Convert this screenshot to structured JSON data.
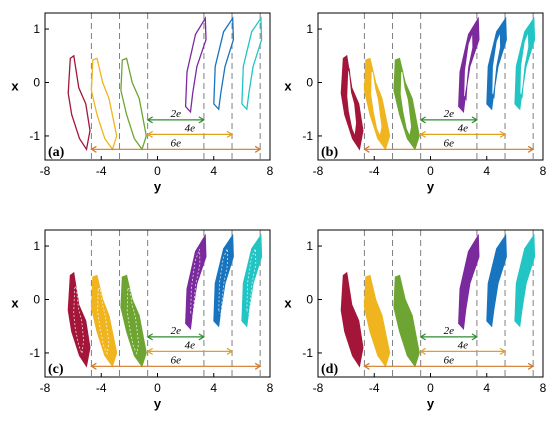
{
  "colors": {
    "series": [
      "#a3163a",
      "#f0b41e",
      "#6ea532",
      "#7b2a9e",
      "#1874be",
      "#22c4c4"
    ],
    "annotation_2e": "#2e8b2e",
    "annotation_4e": "#e0a020",
    "annotation_6e": "#d07a2a",
    "guide": "#808080",
    "frame": "#000000"
  },
  "chart_data": [
    {
      "type": "line",
      "panel_label": "(a)",
      "style": "outline",
      "xlabel": "y",
      "ylabel": "x",
      "xlim": [
        -8,
        8
      ],
      "ylim": [
        -1.45,
        1.3
      ],
      "xticks": [
        "-8",
        "-4",
        "0",
        "4",
        "8"
      ],
      "yticks": [
        "-1",
        "0",
        "1"
      ],
      "guide_lines_x": [
        -4.7,
        -2.7,
        -0.7,
        3.3,
        5.3,
        7.3
      ],
      "annotations": [
        {
          "label": "2e",
          "from": -0.7,
          "to": 3.3,
          "y": -0.7
        },
        {
          "label": "4e",
          "from": -0.7,
          "to": 5.3,
          "y": -0.97
        },
        {
          "label": "6e",
          "from": -4.7,
          "to": 7.3,
          "y": -1.25
        }
      ]
    },
    {
      "type": "area",
      "panel_label": "(b)",
      "style": "band",
      "xlabel": "y",
      "ylabel": "x",
      "xlim": [
        -8,
        8
      ],
      "ylim": [
        -1.45,
        1.3
      ],
      "xticks": [
        "-8",
        "-4",
        "0",
        "4",
        "8"
      ],
      "yticks": [
        "-1",
        "0",
        "1"
      ],
      "guide_lines_x": [
        -4.7,
        -2.7,
        -0.7,
        3.3,
        5.3,
        7.3
      ],
      "annotations": [
        {
          "label": "2e",
          "from": -0.7,
          "to": 3.3,
          "y": -0.7
        },
        {
          "label": "4e",
          "from": -0.7,
          "to": 5.3,
          "y": -0.97
        },
        {
          "label": "6e",
          "from": -4.7,
          "to": 7.3,
          "y": -1.25
        }
      ]
    },
    {
      "type": "area",
      "panel_label": "(c)",
      "style": "hatched",
      "xlabel": "y",
      "ylabel": "x",
      "xlim": [
        -8,
        8
      ],
      "ylim": [
        -1.45,
        1.3
      ],
      "xticks": [
        "-8",
        "-4",
        "0",
        "4",
        "8"
      ],
      "yticks": [
        "-1",
        "0",
        "1"
      ],
      "guide_lines_x": [
        -4.7,
        -2.7,
        -0.7,
        3.3,
        5.3,
        7.3
      ],
      "annotations": [
        {
          "label": "2e",
          "from": -0.7,
          "to": 3.3,
          "y": -0.7
        },
        {
          "label": "4e",
          "from": -0.7,
          "to": 5.3,
          "y": -0.97
        },
        {
          "label": "6e",
          "from": -4.7,
          "to": 7.3,
          "y": -1.25
        }
      ]
    },
    {
      "type": "area",
      "panel_label": "(d)",
      "style": "solid",
      "xlabel": "y",
      "ylabel": "x",
      "xlim": [
        -8,
        8
      ],
      "ylim": [
        -1.45,
        1.3
      ],
      "xticks": [
        "-8",
        "-4",
        "0",
        "4",
        "8"
      ],
      "yticks": [
        "-1",
        "0",
        "1"
      ],
      "guide_lines_x": [
        -4.7,
        -2.7,
        -0.7,
        3.3,
        5.3,
        7.3
      ],
      "annotations": [
        {
          "label": "2e",
          "from": -0.7,
          "to": 3.3,
          "y": -0.7
        },
        {
          "label": "4e",
          "from": -0.7,
          "to": 5.3,
          "y": -0.97
        },
        {
          "label": "6e",
          "from": -4.7,
          "to": 7.3,
          "y": -1.25
        }
      ]
    }
  ],
  "attractors": [
    {
      "name": "",
      "points": [
        [
          -6.2,
          0.45
        ],
        [
          -5.95,
          0.5
        ],
        [
          -5.6,
          -0.1
        ],
        [
          -5.1,
          -0.4
        ],
        [
          -4.8,
          -0.9
        ],
        [
          -5.05,
          -1.25
        ],
        [
          -5.55,
          -1.05
        ],
        [
          -6.1,
          -0.6
        ],
        [
          -6.35,
          -0.2
        ]
      ]
    },
    {
      "name": "",
      "points": [
        [
          -4.6,
          0.42
        ],
        [
          -4.3,
          0.45
        ],
        [
          -3.9,
          0.0
        ],
        [
          -3.45,
          -0.3
        ],
        [
          -2.9,
          -1.0
        ],
        [
          -3.2,
          -1.25
        ],
        [
          -3.75,
          -1.05
        ],
        [
          -4.3,
          -0.6
        ],
        [
          -4.7,
          -0.15
        ]
      ]
    },
    {
      "name": "",
      "points": [
        [
          -2.5,
          0.42
        ],
        [
          -2.2,
          0.45
        ],
        [
          -1.8,
          0.0
        ],
        [
          -1.3,
          -0.3
        ],
        [
          -0.8,
          -1.0
        ],
        [
          -1.1,
          -1.25
        ],
        [
          -1.65,
          -1.05
        ],
        [
          -2.2,
          -0.6
        ],
        [
          -2.6,
          -0.15
        ]
      ]
    },
    {
      "name": "",
      "points": [
        [
          2.0,
          -0.45
        ],
        [
          2.1,
          0.2
        ],
        [
          2.7,
          0.9
        ],
        [
          3.4,
          1.2
        ],
        [
          3.45,
          0.8
        ],
        [
          2.8,
          0.3
        ],
        [
          2.5,
          -0.2
        ],
        [
          2.35,
          -0.55
        ]
      ]
    },
    {
      "name": "",
      "points": [
        [
          4.0,
          -0.4
        ],
        [
          4.1,
          0.3
        ],
        [
          4.7,
          0.95
        ],
        [
          5.35,
          1.2
        ],
        [
          5.4,
          0.8
        ],
        [
          4.8,
          0.3
        ],
        [
          4.5,
          -0.2
        ],
        [
          4.35,
          -0.5
        ]
      ]
    },
    {
      "name": "",
      "points": [
        [
          6.0,
          -0.4
        ],
        [
          6.1,
          0.3
        ],
        [
          6.7,
          0.95
        ],
        [
          7.35,
          1.2
        ],
        [
          7.4,
          0.8
        ],
        [
          6.8,
          0.3
        ],
        [
          6.5,
          -0.2
        ],
        [
          6.35,
          -0.5
        ]
      ]
    }
  ]
}
